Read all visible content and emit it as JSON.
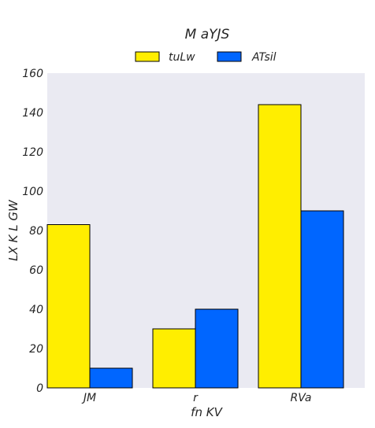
{
  "chart_data": {
    "type": "bar",
    "title": "M aYJS",
    "xlabel": "fn KV",
    "ylabel": "LX K L  GW",
    "categories": [
      "JM",
      "r",
      "RVa"
    ],
    "series": [
      {
        "name": "tuLw",
        "values": [
          83,
          30,
          144
        ],
        "color": "#ffee00"
      },
      {
        "name": "ATsil",
        "values": [
          10,
          40,
          90
        ],
        "color": "#0066ff"
      }
    ],
    "ylim": [
      0,
      160
    ],
    "yticks": [
      0,
      20,
      40,
      60,
      80,
      100,
      120,
      140,
      160
    ],
    "grid": false,
    "legend_position": "top-center",
    "plot_background": "#eaeaf2",
    "bar_edge_color": "#000000"
  }
}
